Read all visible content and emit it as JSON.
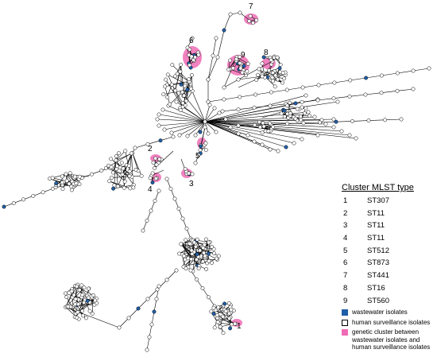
{
  "legend": {
    "title": "Cluster MLST type",
    "rows": [
      {
        "num": "1",
        "st": "ST307"
      },
      {
        "num": "2",
        "st": "ST11"
      },
      {
        "num": "3",
        "st": "ST11"
      },
      {
        "num": "4",
        "st": "ST11"
      },
      {
        "num": "5",
        "st": "ST512"
      },
      {
        "num": "6",
        "st": "ST873"
      },
      {
        "num": "7",
        "st": "ST441"
      },
      {
        "num": "8",
        "st": "ST16"
      },
      {
        "num": "9",
        "st": "ST560"
      }
    ]
  },
  "key": {
    "wastewater": "wastewater isolates",
    "human": "human surveillance isolates",
    "cluster_line1": "genetic cluster between",
    "cluster_line2": "wastewater isolates and",
    "cluster_line3": "human surveillance isolates"
  },
  "cluster_labels": [
    "1",
    "2",
    "3",
    "4",
    "5",
    "6",
    "7",
    "8",
    "9"
  ],
  "colors": {
    "wastewater": "#1f5fa8",
    "human": "#ffffff",
    "cluster": "#f06bb5",
    "edge": "#000000"
  }
}
